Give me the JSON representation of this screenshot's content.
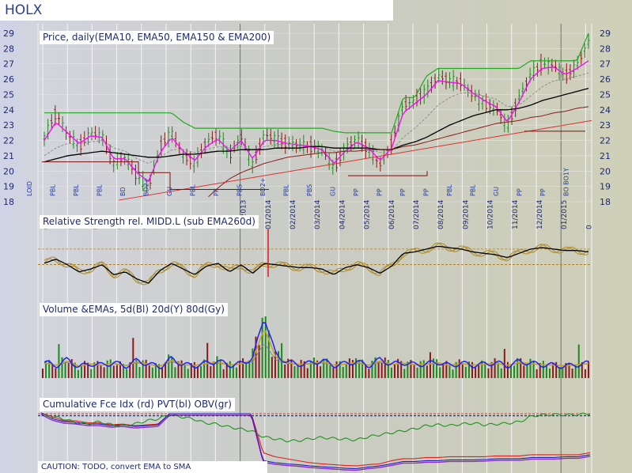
{
  "ticker": "HOLX",
  "panels": {
    "price_title": "Price, daily(EMA10, EMA50, EMA150 & EMA200)",
    "rs_title": "Relative Strength rel. MIDD.L (sub EMA260d)",
    "volume_title": "Volume &EMAs, 5d(Bl) 20d(Y) 80d(Gy)",
    "flow_title": "Cumulative Fce Idx (rd) PVT(bl) OBV(gr)",
    "caution": "CAUTION: TODO, convert EMA to SMA"
  },
  "colors": {
    "price_up": "#1c8a1c",
    "price_down": "#8b1a1a",
    "ema10": "#ff00ff",
    "ema50": "#888888",
    "ema150": "#000000",
    "ema200": "#8b1a1a",
    "trend_red": "#e03030",
    "resistance": "#22aa22",
    "rs_line": "#000000",
    "rs_band": "#b09030",
    "vol_ema5": "#2020ff",
    "vol_ema20": "#c8a020",
    "vol_ema80": "#808080",
    "force_idx": "#e02020",
    "pvt": "#2020c0",
    "obv": "#209020",
    "purple": "#8000c0"
  },
  "chart_data": [
    {
      "type": "line",
      "title": "Price, daily(EMA10, EMA50, EMA150 & EMA200)",
      "ylim": [
        18,
        29
      ],
      "y_ticks": [
        18,
        19,
        20,
        21,
        22,
        23,
        24,
        25,
        26,
        27,
        28,
        29
      ],
      "x_ticks": [
        "0/2013",
        "0/2013",
        "0/2013",
        "0/2013",
        "0/2013",
        "0/2013",
        "0/2013",
        "0/2013",
        "12/2013",
        "01/2014",
        "02/2014",
        "03/2014",
        "04/2014",
        "05/2014",
        "06/2014",
        "07/2014",
        "08/2014",
        "09/2014",
        "10/2014",
        "11/2014",
        "12/2014",
        "01/2015",
        "0"
      ],
      "x_ticks_visible": [
        "013",
        "013",
        "013",
        "013",
        "013",
        "013",
        "013",
        "013",
        "12/2013",
        "01/2014",
        "02/2014",
        "03/2014",
        "04/2014",
        "05/2014",
        "06/2014",
        "07/2014",
        "08/2014",
        "09/2014",
        "10/2014",
        "11/2014",
        "12/2014",
        "01/2015",
        "0"
      ],
      "signal_labels": [
        "LOID",
        "PBL",
        "PBL",
        "PBL",
        "BD",
        "BD2+",
        "GU",
        "PBL",
        "PP",
        "PBS",
        "BD2+",
        "PBL",
        "PBS",
        "GU",
        "PP",
        "PP",
        "PP",
        "PP",
        "PBL",
        "PBL",
        "GU",
        "PP",
        "PP",
        "BO BO1Y"
      ],
      "series": [
        {
          "name": "Price",
          "values": [
            22.2,
            23.8,
            22.4,
            21.6,
            22.5,
            22.3,
            20.5,
            20.9,
            19.7,
            18.9,
            21.6,
            22.5,
            21.0,
            20.5,
            21.9,
            22.4,
            21.0,
            22.3,
            20.4,
            22.4,
            22.1,
            21.8,
            21.7,
            21.6,
            21.4,
            20.2,
            21.5,
            22.1,
            21.4,
            20.4,
            21.8,
            24.3,
            24.6,
            25.2,
            26.2,
            25.9,
            25.8,
            25.0,
            24.4,
            24.1,
            22.9,
            24.8,
            26.3,
            27.0,
            26.9,
            26.2,
            26.9,
            28.4
          ]
        },
        {
          "name": "EMA10",
          "values": [
            22.0,
            23.2,
            22.5,
            21.8,
            22.3,
            22.2,
            20.8,
            20.8,
            19.9,
            19.3,
            21.2,
            22.2,
            21.3,
            20.7,
            21.6,
            22.1,
            21.3,
            22.0,
            20.8,
            22.0,
            22.0,
            21.8,
            21.7,
            21.6,
            21.4,
            20.5,
            21.3,
            21.9,
            21.5,
            20.7,
            21.5,
            23.8,
            24.4,
            25.0,
            25.9,
            25.8,
            25.7,
            25.1,
            24.6,
            24.2,
            23.2,
            24.5,
            26.0,
            26.7,
            26.8,
            26.3,
            26.7,
            27.2
          ]
        },
        {
          "name": "EMA50",
          "values": [
            21.0,
            21.5,
            21.8,
            21.8,
            21.9,
            22.0,
            21.5,
            21.3,
            20.8,
            20.5,
            20.9,
            21.4,
            21.4,
            21.2,
            21.4,
            21.6,
            21.5,
            21.6,
            21.4,
            21.6,
            21.7,
            21.8,
            21.7,
            21.7,
            21.6,
            21.3,
            21.3,
            21.5,
            21.5,
            21.2,
            21.3,
            22.2,
            22.8,
            23.5,
            24.3,
            24.8,
            25.1,
            25.1,
            24.9,
            24.7,
            24.2,
            24.3,
            24.9,
            25.5,
            25.9,
            26.0,
            26.2,
            26.4
          ]
        },
        {
          "name": "EMA150",
          "values": [
            20.6,
            20.8,
            21.0,
            21.1,
            21.2,
            21.3,
            21.2,
            21.1,
            21.0,
            20.9,
            20.9,
            21.0,
            21.1,
            21.1,
            21.2,
            21.3,
            21.3,
            21.4,
            21.4,
            21.4,
            21.5,
            21.5,
            21.5,
            21.6,
            21.6,
            21.5,
            21.5,
            21.5,
            21.5,
            21.4,
            21.4,
            21.7,
            21.9,
            22.2,
            22.6,
            23.0,
            23.3,
            23.6,
            23.8,
            24.0,
            24.0,
            24.1,
            24.3,
            24.6,
            24.8,
            25.0,
            25.2,
            25.4
          ]
        },
        {
          "name": "EMA200",
          "values": [
            null,
            null,
            null,
            null,
            null,
            null,
            null,
            null,
            null,
            null,
            null,
            null,
            null,
            null,
            18.2,
            18.9,
            19.5,
            19.9,
            20.2,
            20.5,
            20.7,
            20.9,
            21.0,
            21.1,
            21.2,
            21.2,
            21.3,
            21.3,
            21.4,
            21.4,
            21.4,
            21.6,
            21.7,
            21.9,
            22.1,
            22.3,
            22.5,
            22.7,
            22.9,
            23.1,
            23.2,
            23.3,
            23.5,
            23.6,
            23.8,
            23.9,
            24.1,
            24.2
          ]
        },
        {
          "name": "Resistance",
          "values": [
            23.8,
            23.8,
            23.8,
            23.8,
            23.8,
            23.8,
            23.8,
            23.8,
            23.8,
            23.8,
            23.8,
            23.8,
            23.2,
            22.8,
            22.8,
            22.8,
            22.8,
            22.8,
            22.8,
            22.8,
            22.8,
            22.8,
            22.8,
            22.8,
            22.8,
            22.6,
            22.5,
            22.5,
            22.5,
            22.5,
            22.5,
            24.8,
            24.8,
            26.2,
            26.7,
            26.7,
            26.7,
            26.7,
            26.7,
            26.7,
            26.7,
            26.7,
            27.2,
            27.2,
            27.2,
            27.2,
            27.2,
            29.0
          ]
        }
      ]
    },
    {
      "type": "line",
      "title": "Relative Strength rel. MIDD.L (sub EMA260d)",
      "series": [
        {
          "name": "RS",
          "values": [
            0.2,
            0.5,
            0.1,
            -0.4,
            -0.2,
            0.1,
            -0.6,
            -0.4,
            -0.9,
            -1.2,
            -0.3,
            0.2,
            -0.2,
            -0.6,
            0.0,
            0.2,
            -0.4,
            0.1,
            -0.5,
            0.2,
            0.1,
            0.0,
            -0.1,
            -0.1,
            -0.2,
            -0.6,
            -0.1,
            0.1,
            -0.1,
            -0.5,
            0.0,
            0.9,
            1.0,
            1.2,
            1.4,
            1.3,
            1.2,
            1.0,
            0.9,
            0.8,
            0.6,
            0.9,
            1.2,
            1.3,
            1.2,
            1.1,
            1.1,
            1.0
          ]
        }
      ]
    },
    {
      "type": "bar",
      "title": "Volume &EMAs, 5d(Bl) 20d(Y) 80d(Gy)",
      "series": [
        {
          "name": "Volume",
          "values": [
            3.1,
            2.4,
            3.6,
            2.2,
            2.8,
            2.5,
            3.0,
            2.3,
            3.4,
            2.7,
            2.2,
            3.8,
            2.6,
            2.4,
            2.9,
            3.3,
            2.5,
            2.8,
            3.9,
            12.0,
            4.5,
            3.1,
            2.7,
            2.9,
            3.4,
            2.5,
            2.8,
            3.2,
            2.4,
            3.6,
            2.7,
            3.0,
            2.6,
            2.8,
            3.1,
            2.4,
            2.9,
            2.5,
            2.7,
            3.0,
            2.4,
            3.2,
            2.9,
            2.6,
            2.5,
            2.3,
            2.6,
            2.9
          ]
        }
      ]
    },
    {
      "type": "line",
      "title": "Cumulative Fce Idx (rd) PVT(bl) OBV(gr)",
      "series": [
        {
          "name": "Fce Idx",
          "values": [
            1.0,
            0.9,
            0.8,
            0.8,
            0.75,
            0.75,
            0.7,
            0.72,
            0.68,
            0.7,
            0.72,
            0.98,
            0.98,
            0.98,
            0.98,
            0.98,
            0.98,
            0.98,
            0.98,
            0.0,
            -0.1,
            -0.15,
            -0.2,
            -0.25,
            -0.28,
            -0.3,
            -0.32,
            -0.33,
            -0.3,
            -0.28,
            -0.2,
            -0.15,
            -0.15,
            -0.12,
            -0.12,
            -0.1,
            -0.1,
            -0.1,
            -0.1,
            -0.08,
            -0.08,
            -0.08,
            -0.05,
            -0.05,
            -0.05,
            -0.05,
            -0.05,
            0.0
          ]
        },
        {
          "name": "PVT",
          "values": [
            1.0,
            0.85,
            0.78,
            0.76,
            0.72,
            0.72,
            0.68,
            0.7,
            0.66,
            0.68,
            0.7,
            0.98,
            0.98,
            0.98,
            0.98,
            0.98,
            0.98,
            0.98,
            0.98,
            -0.2,
            -0.25,
            -0.28,
            -0.3,
            -0.33,
            -0.35,
            -0.37,
            -0.39,
            -0.4,
            -0.36,
            -0.33,
            -0.28,
            -0.22,
            -0.22,
            -0.2,
            -0.2,
            -0.18,
            -0.18,
            -0.18,
            -0.17,
            -0.15,
            -0.15,
            -0.15,
            -0.12,
            -0.12,
            -0.12,
            -0.1,
            -0.1,
            -0.05
          ]
        },
        {
          "name": "OBV",
          "values": [
            0.95,
            0.9,
            0.85,
            0.75,
            0.72,
            0.78,
            0.7,
            0.68,
            0.72,
            0.8,
            0.85,
            0.95,
            0.9,
            0.85,
            0.75,
            0.72,
            0.65,
            0.6,
            0.55,
            0.4,
            0.35,
            0.3,
            0.3,
            0.35,
            0.38,
            0.36,
            0.34,
            0.32,
            0.4,
            0.45,
            0.5,
            0.55,
            0.6,
            0.68,
            0.7,
            0.68,
            0.72,
            0.74,
            0.7,
            0.72,
            0.74,
            0.78,
            0.92,
            0.95,
            0.96,
            0.95,
            0.96,
            0.98
          ]
        }
      ]
    }
  ]
}
